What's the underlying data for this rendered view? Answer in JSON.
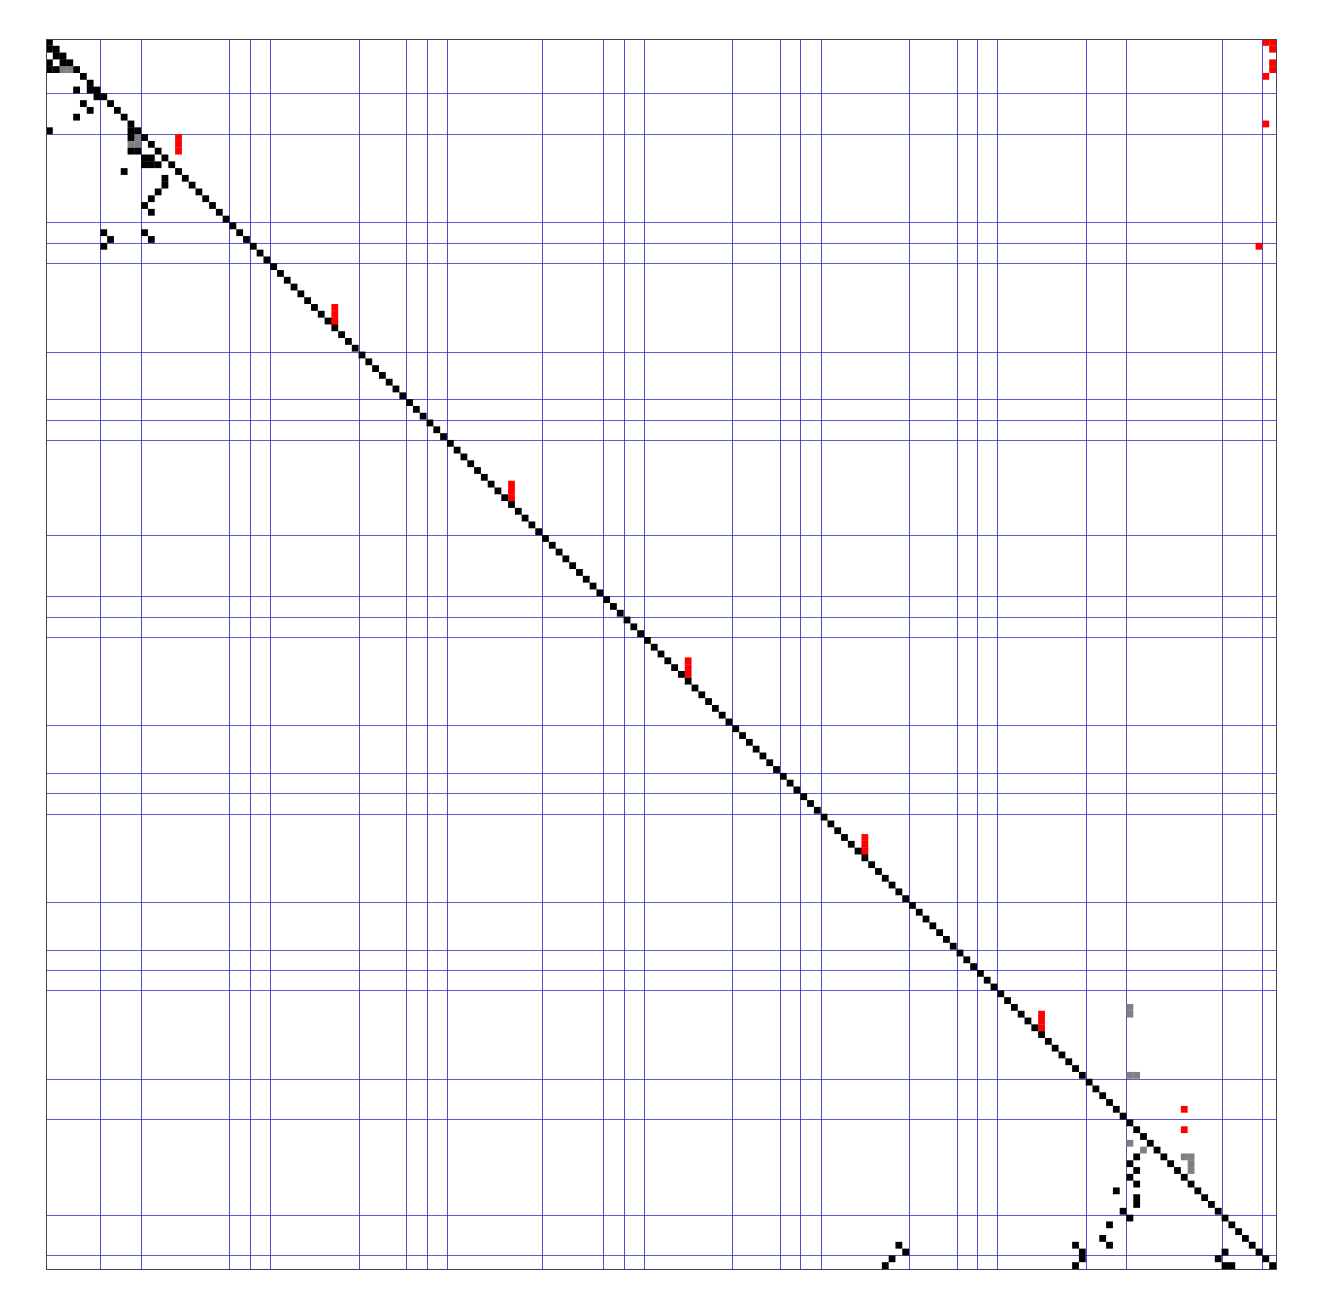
{
  "chart_data": {
    "type": "heatmap",
    "title": "",
    "xlabel": "",
    "ylabel": "",
    "n": 181,
    "grid_lines": [
      8,
      14,
      27,
      30,
      33,
      46,
      53,
      56,
      59,
      73,
      82,
      85,
      88,
      101,
      108,
      111,
      114,
      127,
      134,
      137,
      140,
      153,
      159,
      173,
      179
    ],
    "colors": {
      "background": "#ffffff",
      "frame": "#444444",
      "grid": "#2222cc",
      "black": "#000000",
      "gray": "#808080",
      "red": "#ff0000"
    },
    "diagonal": [
      0,
      180
    ],
    "red_cells": [
      [
        0,
        179
      ],
      [
        0,
        180
      ],
      [
        1,
        180
      ],
      [
        3,
        180
      ],
      [
        4,
        180
      ],
      [
        5,
        179
      ],
      [
        12,
        179
      ],
      [
        30,
        178
      ],
      [
        14,
        19
      ],
      [
        15,
        19
      ],
      [
        16,
        19
      ],
      [
        39,
        42
      ],
      [
        40,
        42
      ],
      [
        41,
        42
      ],
      [
        65,
        68
      ],
      [
        66,
        68
      ],
      [
        67,
        68
      ],
      [
        91,
        94
      ],
      [
        92,
        94
      ],
      [
        93,
        94
      ],
      [
        117,
        120
      ],
      [
        118,
        120
      ],
      [
        119,
        120
      ],
      [
        143,
        146
      ],
      [
        144,
        146
      ],
      [
        145,
        146
      ],
      [
        157,
        167
      ],
      [
        160,
        167
      ]
    ],
    "gray_cells": [
      [
        4,
        2
      ],
      [
        4,
        3
      ],
      [
        14,
        13
      ],
      [
        15,
        12
      ],
      [
        15,
        13
      ],
      [
        142,
        159
      ],
      [
        143,
        159
      ],
      [
        152,
        159
      ],
      [
        152,
        160
      ],
      [
        162,
        159
      ],
      [
        163,
        161
      ],
      [
        164,
        167
      ],
      [
        164,
        168
      ],
      [
        165,
        168
      ],
      [
        166,
        168
      ]
    ],
    "black_cells": [
      [
        1,
        0
      ],
      [
        2,
        1
      ],
      [
        3,
        0
      ],
      [
        3,
        2
      ],
      [
        4,
        0
      ],
      [
        4,
        1
      ],
      [
        7,
        4
      ],
      [
        7,
        6
      ],
      [
        8,
        7
      ],
      [
        9,
        5
      ],
      [
        10,
        6
      ],
      [
        11,
        4
      ],
      [
        13,
        0
      ],
      [
        13,
        12
      ],
      [
        14,
        12
      ],
      [
        16,
        12
      ],
      [
        16,
        13
      ],
      [
        17,
        14
      ],
      [
        17,
        15
      ],
      [
        18,
        14
      ],
      [
        18,
        15
      ],
      [
        18,
        16
      ],
      [
        19,
        11
      ],
      [
        20,
        17
      ],
      [
        21,
        17
      ],
      [
        22,
        16
      ],
      [
        23,
        15
      ],
      [
        24,
        14
      ],
      [
        25,
        15
      ],
      [
        28,
        8
      ],
      [
        29,
        9
      ],
      [
        30,
        8
      ],
      [
        28,
        14
      ],
      [
        29,
        15
      ],
      [
        164,
        160
      ],
      [
        165,
        159
      ],
      [
        166,
        160
      ],
      [
        167,
        159
      ],
      [
        168,
        160
      ],
      [
        169,
        157
      ],
      [
        170,
        160
      ],
      [
        171,
        160
      ],
      [
        172,
        158
      ],
      [
        173,
        159
      ],
      [
        174,
        156
      ],
      [
        176,
        155
      ],
      [
        177,
        156
      ],
      [
        178,
        173
      ],
      [
        179,
        172
      ],
      [
        180,
        173
      ],
      [
        180,
        174
      ],
      [
        177,
        125
      ],
      [
        178,
        126
      ],
      [
        179,
        124
      ],
      [
        180,
        123
      ],
      [
        177,
        151
      ],
      [
        178,
        152
      ],
      [
        179,
        152
      ],
      [
        180,
        151
      ]
    ]
  }
}
